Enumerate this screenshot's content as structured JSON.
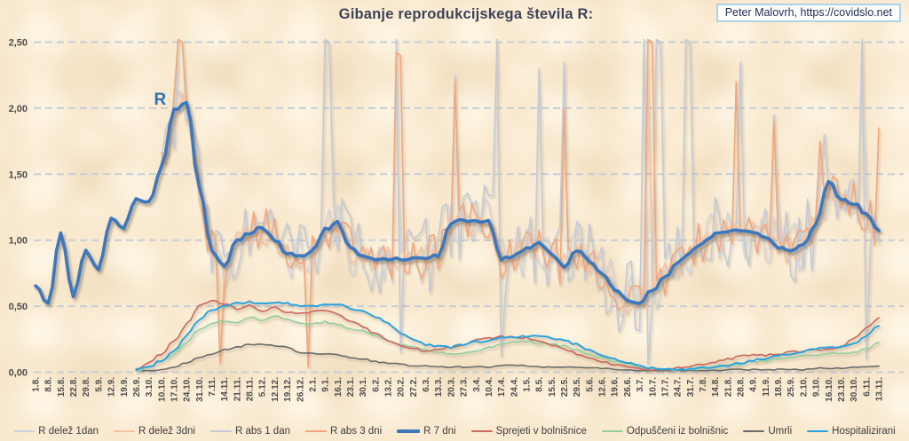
{
  "page": {
    "attribution": "Peter Malovrh, https://covidslo.net",
    "colors": {
      "attribution_border": "#aed2e8",
      "attribution_text": "#1c2c50",
      "background": "#f9e9cf"
    }
  },
  "chart_data": {
    "type": "line",
    "title": "Gibanje reprodukcijskega števila R:",
    "xlabel": "",
    "ylabel": "",
    "ylim": [
      0,
      2.5
    ],
    "grid": "horizontal-dashed",
    "legend_position": "bottom",
    "colors": {
      "grid": "#c7cdd8",
      "tick_text": "#4d4d4d",
      "title": "#3f4357"
    },
    "annotation": {
      "text": "R",
      "week": 9.9,
      "value": 2.06,
      "color": "#2e6fb7"
    },
    "y_ticks": [
      {
        "v": 0.0,
        "label": "0,00"
      },
      {
        "v": 0.5,
        "label": "0,50"
      },
      {
        "v": 1.0,
        "label": "1,00"
      },
      {
        "v": 1.5,
        "label": "1,50"
      },
      {
        "v": 2.0,
        "label": "2,00"
      },
      {
        "v": 2.5,
        "label": "2,50"
      }
    ],
    "x_labels": [
      "1.8.",
      "8.8.",
      "15.8.",
      "22.8.",
      "29.8.",
      "5.9.",
      "12.9.",
      "19.9.",
      "26.9.",
      "3.10.",
      "10.10.",
      "17.10.",
      "24.10.",
      "31.10.",
      "7.11.",
      "14.11.",
      "21.11.",
      "28.11.",
      "5.12.",
      "12.12.",
      "19.12.",
      "26.12.",
      "2.1.",
      "9.1.",
      "16.1.",
      "23.1.",
      "30.1.",
      "6.2.",
      "13.2.",
      "20.2.",
      "27.2.",
      "6.3.",
      "13.3.",
      "20.3.",
      "27.3.",
      "3.4.",
      "10.4.",
      "17.4.",
      "24.4.",
      "1.5.",
      "8.5.",
      "15.5.",
      "22.5.",
      "29.5.",
      "5.6.",
      "12.6.",
      "19.6.",
      "26.6.",
      "3.7.",
      "10.7.",
      "17.7.",
      "24.7.",
      "31.7.",
      "7.8.",
      "14.8.",
      "21.8.",
      "28.8.",
      "4.9.",
      "11.9.",
      "18.9.",
      "25.9.",
      "2.10.",
      "9.10.",
      "16.10.",
      "23.10.",
      "30.10.",
      "6.11.",
      "13.11."
    ],
    "series": [
      {
        "name": "R delež 1dan",
        "color": "#ccd4e2",
        "width": 1.3,
        "smooth": false,
        "noise_amp": 0.2,
        "seed": 11,
        "spikes": [
          [
            28.8,
            2.1
          ],
          [
            48.5,
            2.3
          ],
          [
            65.8,
            2.2
          ]
        ],
        "values": [
          null,
          null,
          null,
          null,
          null,
          null,
          null,
          null,
          null,
          null,
          1.55,
          1.98,
          2.05,
          1.4,
          0.92,
          0.8,
          1.0,
          1.05,
          1.1,
          1.0,
          0.9,
          0.88,
          0.92,
          1.08,
          1.13,
          0.94,
          0.87,
          0.86,
          0.86,
          0.86,
          0.86,
          0.87,
          0.88,
          1.13,
          1.15,
          1.15,
          1.14,
          0.86,
          0.88,
          0.94,
          0.98,
          0.9,
          0.79,
          0.93,
          0.85,
          0.75,
          0.62,
          0.55,
          0.53,
          0.62,
          0.72,
          0.82,
          0.91,
          0.98,
          1.05,
          1.07,
          1.07,
          1.06,
          1.03,
          0.95,
          0.92,
          0.97,
          1.12,
          1.45,
          1.31,
          1.28,
          1.2,
          1.08
        ]
      },
      {
        "name": "R delež 3dni",
        "color": "#f6c2a2",
        "width": 1.6,
        "smooth": false,
        "noise_amp": 0.11,
        "seed": 22,
        "spikes": [
          [
            14.7,
            0.1
          ],
          [
            21.65,
            0.12
          ],
          [
            48.7,
            2.3
          ]
        ],
        "values": [
          null,
          null,
          null,
          null,
          null,
          null,
          null,
          null,
          null,
          null,
          1.55,
          1.98,
          2.05,
          1.4,
          0.92,
          0.8,
          1.0,
          1.05,
          1.1,
          1.0,
          0.9,
          0.88,
          0.92,
          1.08,
          1.13,
          0.94,
          0.87,
          0.86,
          0.86,
          0.86,
          0.86,
          0.87,
          0.88,
          1.13,
          1.15,
          1.15,
          1.14,
          0.86,
          0.88,
          0.94,
          0.98,
          0.9,
          0.79,
          0.93,
          0.85,
          0.75,
          0.62,
          0.55,
          0.53,
          0.62,
          0.72,
          0.82,
          0.91,
          0.98,
          1.05,
          1.07,
          1.07,
          1.06,
          1.03,
          0.95,
          0.92,
          0.97,
          1.12,
          1.45,
          1.31,
          1.28,
          1.2,
          1.08
        ]
      },
      {
        "name": "R abs 1 dan",
        "color": "#c5cad7",
        "width": 1.6,
        "smooth": false,
        "noise_amp": 0.3,
        "seed": 33,
        "spikes": [
          [
            11.2,
            2.52
          ],
          [
            22.9,
            2.52
          ],
          [
            28.8,
            2.52
          ],
          [
            29.1,
            0.15
          ],
          [
            33.4,
            2.25
          ],
          [
            36.8,
            2.52
          ],
          [
            37.0,
            0.12
          ],
          [
            39.9,
            2.3
          ],
          [
            42.0,
            2.35
          ],
          [
            48.4,
            2.52
          ],
          [
            48.6,
            0.06
          ],
          [
            49.2,
            2.52
          ],
          [
            51.6,
            2.52
          ],
          [
            56.0,
            2.35
          ],
          [
            58.8,
            1.95
          ],
          [
            62.6,
            1.8
          ],
          [
            65.8,
            2.52
          ],
          [
            66.0,
            0.1
          ]
        ],
        "values": [
          null,
          null,
          null,
          null,
          null,
          null,
          null,
          null,
          null,
          null,
          1.55,
          1.98,
          2.05,
          1.4,
          0.92,
          0.8,
          1.0,
          1.05,
          1.1,
          1.0,
          0.9,
          0.88,
          0.92,
          1.08,
          1.13,
          0.94,
          0.87,
          0.86,
          0.86,
          0.86,
          0.86,
          0.87,
          0.88,
          1.13,
          1.15,
          1.15,
          1.14,
          0.86,
          0.88,
          0.94,
          0.98,
          0.9,
          0.79,
          0.93,
          0.85,
          0.75,
          0.62,
          0.55,
          0.53,
          0.62,
          0.72,
          0.82,
          0.91,
          0.98,
          1.05,
          1.07,
          1.07,
          1.06,
          1.03,
          0.95,
          0.92,
          0.97,
          1.12,
          1.45,
          1.31,
          1.28,
          1.2,
          1.08
        ]
      },
      {
        "name": "R abs 3 dni",
        "color": "#f2a77d",
        "width": 1.6,
        "smooth": false,
        "noise_amp": 0.17,
        "seed": 44,
        "spikes": [
          [
            11.3,
            2.52
          ],
          [
            14.7,
            0.07
          ],
          [
            21.65,
            0.04
          ],
          [
            28.8,
            2.42
          ],
          [
            33.4,
            2.2
          ],
          [
            42.0,
            2.0
          ],
          [
            48.7,
            2.52
          ],
          [
            55.8,
            2.2
          ],
          [
            58.7,
            1.9
          ],
          [
            62.4,
            1.75
          ],
          [
            66.9,
            1.85
          ]
        ],
        "values": [
          null,
          null,
          null,
          null,
          null,
          null,
          null,
          null,
          null,
          null,
          1.55,
          1.98,
          2.05,
          1.4,
          0.92,
          0.8,
          1.0,
          1.05,
          1.1,
          1.0,
          0.9,
          0.88,
          0.92,
          1.08,
          1.13,
          0.94,
          0.87,
          0.86,
          0.86,
          0.86,
          0.86,
          0.87,
          0.88,
          1.13,
          1.15,
          1.15,
          1.14,
          0.86,
          0.88,
          0.94,
          0.98,
          0.9,
          0.79,
          0.93,
          0.85,
          0.75,
          0.62,
          0.55,
          0.53,
          0.62,
          0.72,
          0.82,
          0.91,
          0.98,
          1.05,
          1.07,
          1.07,
          1.06,
          1.03,
          0.95,
          0.92,
          0.97,
          1.12,
          1.45,
          1.31,
          1.28,
          1.2,
          1.08
        ]
      },
      {
        "name": "R 7 dni",
        "color": "#3b78be",
        "width": 3.6,
        "smooth": true,
        "noise_amp": 0.012,
        "seed": 5,
        "spikes": [],
        "values": [
          0.65,
          0.52,
          1.05,
          0.58,
          0.92,
          0.78,
          1.16,
          1.1,
          1.32,
          1.28,
          1.55,
          1.98,
          2.05,
          1.4,
          0.92,
          0.8,
          1.0,
          1.05,
          1.1,
          1.0,
          0.9,
          0.88,
          0.92,
          1.08,
          1.13,
          0.94,
          0.87,
          0.86,
          0.86,
          0.86,
          0.86,
          0.87,
          0.88,
          1.13,
          1.15,
          1.15,
          1.14,
          0.86,
          0.88,
          0.94,
          0.98,
          0.9,
          0.79,
          0.93,
          0.85,
          0.75,
          0.62,
          0.55,
          0.53,
          0.62,
          0.72,
          0.82,
          0.91,
          0.98,
          1.05,
          1.07,
          1.07,
          1.06,
          1.03,
          0.95,
          0.92,
          0.97,
          1.12,
          1.45,
          1.31,
          1.28,
          1.2,
          1.08
        ]
      },
      {
        "name": "Sprejeti v bolnišnice",
        "color": "#cc6b5f",
        "width": 1.7,
        "smooth": true,
        "noise_amp": 0.008,
        "seed": 66,
        "spikes": [],
        "values": [
          null,
          null,
          null,
          null,
          null,
          null,
          null,
          null,
          0.03,
          0.07,
          0.14,
          0.24,
          0.36,
          0.5,
          0.54,
          0.52,
          0.48,
          0.51,
          0.46,
          0.5,
          0.45,
          0.44,
          0.46,
          0.47,
          0.44,
          0.39,
          0.35,
          0.29,
          0.24,
          0.2,
          0.18,
          0.16,
          0.18,
          0.19,
          0.21,
          0.24,
          0.26,
          0.27,
          0.27,
          0.26,
          0.24,
          0.21,
          0.18,
          0.14,
          0.11,
          0.08,
          0.06,
          0.04,
          0.03,
          0.02,
          0.02,
          0.03,
          0.04,
          0.06,
          0.08,
          0.1,
          0.12,
          0.13,
          0.13,
          0.14,
          0.15,
          0.16,
          0.17,
          0.18,
          0.19,
          0.26,
          0.33,
          0.41
        ]
      },
      {
        "name": "Odpuščeni iz bolnišnic",
        "color": "#95cf9f",
        "width": 1.7,
        "smooth": true,
        "noise_amp": 0.008,
        "seed": 77,
        "spikes": [],
        "values": [
          null,
          null,
          null,
          null,
          null,
          null,
          null,
          null,
          0.01,
          0.04,
          0.08,
          0.14,
          0.22,
          0.33,
          0.37,
          0.39,
          0.38,
          0.42,
          0.39,
          0.43,
          0.4,
          0.37,
          0.37,
          0.38,
          0.36,
          0.33,
          0.31,
          0.28,
          0.24,
          0.21,
          0.19,
          0.17,
          0.15,
          0.14,
          0.15,
          0.16,
          0.19,
          0.21,
          0.23,
          0.23,
          0.22,
          0.22,
          0.2,
          0.17,
          0.14,
          0.11,
          0.08,
          0.06,
          0.04,
          0.03,
          0.02,
          0.02,
          0.02,
          0.03,
          0.04,
          0.05,
          0.06,
          0.08,
          0.09,
          0.1,
          0.11,
          0.12,
          0.13,
          0.14,
          0.14,
          0.15,
          0.18,
          0.22
        ]
      },
      {
        "name": "Umrli",
        "color": "#6b6b6b",
        "width": 1.6,
        "smooth": true,
        "noise_amp": 0.005,
        "seed": 88,
        "spikes": [],
        "values": [
          null,
          null,
          null,
          null,
          null,
          null,
          null,
          null,
          0.0,
          0.01,
          0.02,
          0.04,
          0.07,
          0.11,
          0.14,
          0.17,
          0.19,
          0.21,
          0.21,
          0.2,
          0.19,
          0.15,
          0.14,
          0.14,
          0.13,
          0.11,
          0.1,
          0.08,
          0.07,
          0.06,
          0.05,
          0.05,
          0.04,
          0.04,
          0.04,
          0.04,
          0.04,
          0.05,
          0.05,
          0.05,
          0.04,
          0.04,
          0.04,
          0.04,
          0.03,
          0.03,
          0.02,
          0.02,
          0.01,
          0.01,
          0.01,
          0.01,
          0.01,
          0.01,
          0.01,
          0.02,
          0.02,
          0.02,
          0.02,
          0.02,
          0.02,
          0.02,
          0.03,
          0.03,
          0.03,
          0.04,
          0.04,
          0.05
        ]
      },
      {
        "name": "Hospitalizirani",
        "color": "#29a3dd",
        "width": 2.0,
        "smooth": true,
        "noise_amp": 0.008,
        "seed": 99,
        "spikes": [],
        "values": [
          null,
          null,
          null,
          null,
          null,
          null,
          null,
          null,
          0.02,
          0.04,
          0.09,
          0.16,
          0.28,
          0.4,
          0.47,
          0.5,
          0.52,
          0.53,
          0.52,
          0.53,
          0.52,
          0.5,
          0.5,
          0.51,
          0.52,
          0.48,
          0.46,
          0.42,
          0.37,
          0.3,
          0.25,
          0.21,
          0.2,
          0.19,
          0.21,
          0.23,
          0.24,
          0.26,
          0.27,
          0.27,
          0.27,
          0.26,
          0.24,
          0.21,
          0.17,
          0.13,
          0.1,
          0.07,
          0.05,
          0.03,
          0.02,
          0.02,
          0.02,
          0.03,
          0.04,
          0.05,
          0.07,
          0.09,
          0.1,
          0.12,
          0.14,
          0.16,
          0.18,
          0.19,
          0.19,
          0.22,
          0.28,
          0.35
        ]
      }
    ]
  }
}
